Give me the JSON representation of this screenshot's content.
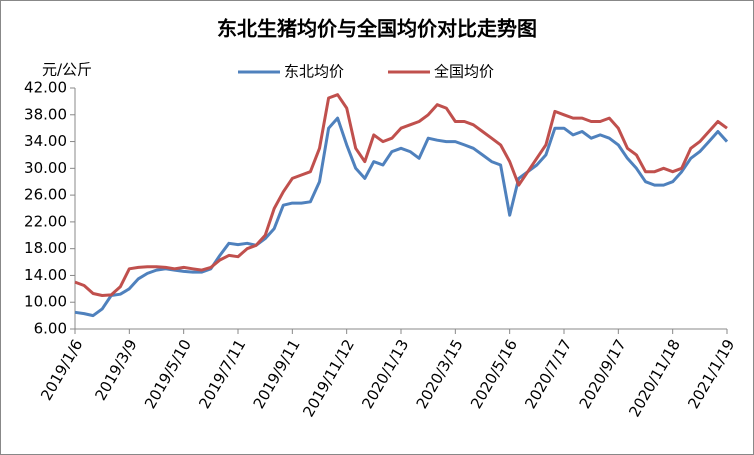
{
  "chart_data": {
    "type": "line",
    "title": "东北生猪均价与全国均价对比走势图",
    "y_label": "元/公斤",
    "categories": [
      "2019/1/6",
      null,
      null,
      null,
      null,
      null,
      "2019/3/9",
      null,
      null,
      null,
      null,
      null,
      "2019/5/10",
      null,
      null,
      null,
      null,
      null,
      "2019/7/11",
      null,
      null,
      null,
      null,
      null,
      "2019/9/11",
      null,
      null,
      null,
      null,
      null,
      "2019/11/12",
      null,
      null,
      null,
      null,
      null,
      "2020/1/13",
      null,
      null,
      null,
      null,
      null,
      "2020/3/15",
      null,
      null,
      null,
      null,
      null,
      "2020/5/16",
      null,
      null,
      null,
      null,
      null,
      "2020/7/17",
      null,
      null,
      null,
      null,
      null,
      "2020/9/17",
      null,
      null,
      null,
      null,
      null,
      "2020/11/18",
      null,
      null,
      null,
      null,
      null,
      "2021/1/19"
    ],
    "series": [
      {
        "name": "东北均价",
        "color": "#4f81bd",
        "values": [
          8.5,
          8.3,
          8.0,
          9.0,
          11.0,
          11.2,
          12.0,
          13.5,
          14.3,
          14.8,
          15.0,
          14.8,
          14.6,
          14.5,
          14.5,
          15.0,
          17.0,
          18.8,
          18.6,
          18.8,
          18.5,
          19.5,
          21.0,
          24.5,
          24.8,
          24.8,
          25.0,
          28.0,
          36.0,
          37.5,
          33.5,
          30.0,
          28.5,
          31.0,
          30.5,
          32.5,
          33.0,
          32.5,
          31.5,
          34.5,
          34.2,
          34.0,
          34.0,
          33.5,
          33.0,
          32.0,
          31.0,
          30.5,
          23.0,
          28.5,
          29.5,
          30.5,
          32.0,
          36.0,
          36.0,
          35.0,
          35.5,
          34.5,
          35.0,
          34.5,
          33.5,
          31.5,
          30.0,
          28.0,
          27.5,
          27.5,
          28.0,
          29.5,
          31.5,
          32.5,
          34.0,
          35.5,
          34.0
        ]
      },
      {
        "name": "全国均价",
        "color": "#c0504d",
        "values": [
          13.0,
          12.5,
          11.3,
          11.0,
          11.1,
          12.3,
          15.0,
          15.2,
          15.3,
          15.3,
          15.2,
          15.0,
          15.2,
          15.0,
          14.8,
          15.2,
          16.3,
          17.0,
          16.8,
          18.0,
          18.5,
          20.0,
          24.0,
          26.5,
          28.5,
          29.0,
          29.5,
          33.0,
          40.5,
          41.0,
          39.0,
          33.0,
          31.0,
          35.0,
          34.0,
          34.5,
          36.0,
          36.5,
          37.0,
          38.0,
          39.5,
          39.0,
          37.0,
          37.0,
          36.5,
          35.5,
          34.5,
          33.5,
          31.0,
          27.5,
          29.5,
          31.5,
          33.5,
          38.5,
          38.0,
          37.5,
          37.5,
          37.0,
          37.0,
          37.5,
          36.0,
          33.0,
          32.0,
          29.5,
          29.5,
          30.0,
          29.5,
          30.0,
          33.0,
          34.0,
          35.5,
          37.0,
          36.0
        ]
      }
    ],
    "ylim": [
      6,
      42
    ],
    "yticks": [
      {
        "value": 6,
        "label": "6.00"
      },
      {
        "value": 10,
        "label": "10.00"
      },
      {
        "value": 14,
        "label": "14.00"
      },
      {
        "value": 18,
        "label": "18.00"
      },
      {
        "value": 22,
        "label": "22.00"
      },
      {
        "value": 26,
        "label": "26.00"
      },
      {
        "value": 30,
        "label": "30.00"
      },
      {
        "value": 34,
        "label": "34.00"
      },
      {
        "value": 38,
        "label": "38.00"
      },
      {
        "value": 42,
        "label": "42.00"
      }
    ],
    "grid": false,
    "legend": "top"
  }
}
